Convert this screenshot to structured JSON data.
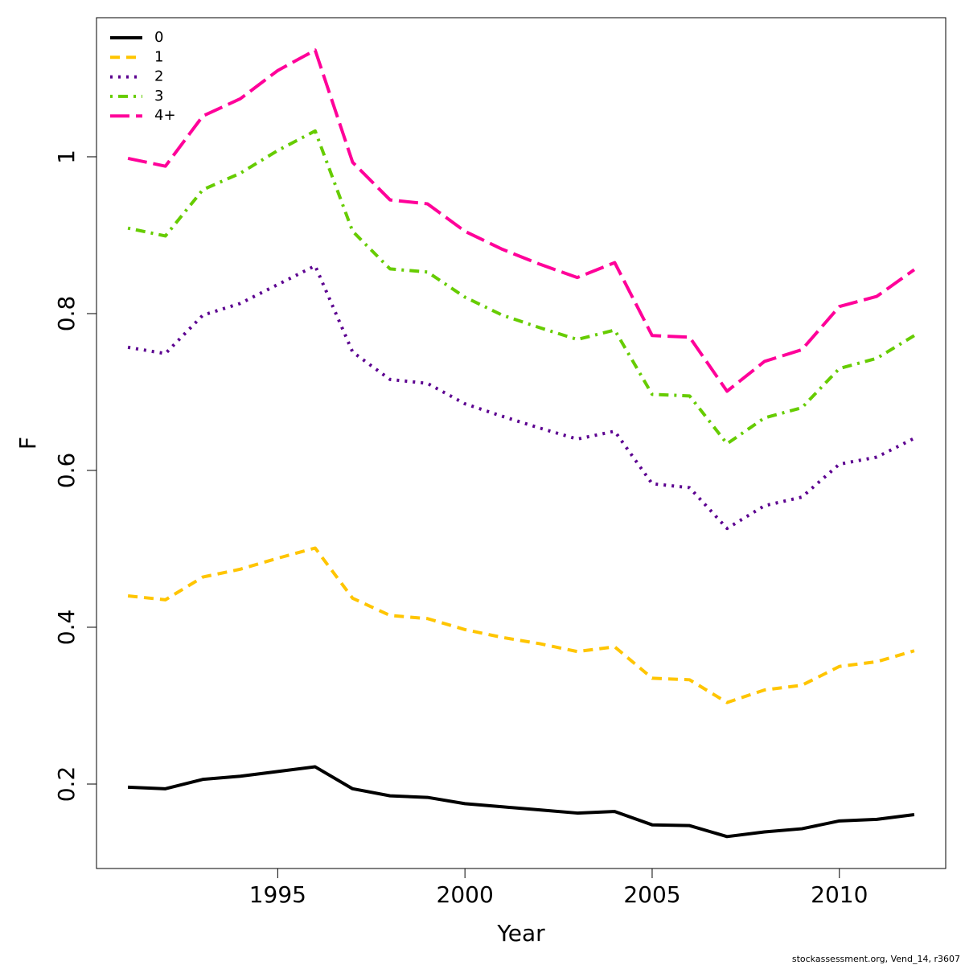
{
  "chart_data": {
    "type": "line",
    "xlabel": "Year",
    "ylabel": "F",
    "x": [
      1991,
      1992,
      1993,
      1994,
      1995,
      1996,
      1997,
      1998,
      1999,
      2000,
      2001,
      2002,
      2003,
      2004,
      2005,
      2006,
      2007,
      2008,
      2009,
      2010,
      2011,
      2012
    ],
    "series": [
      {
        "name": "0",
        "color": "#000000",
        "linestyle": "solid",
        "values": [
          0.196,
          0.194,
          0.206,
          0.21,
          0.216,
          0.222,
          0.194,
          0.185,
          0.183,
          0.175,
          0.171,
          0.167,
          0.163,
          0.165,
          0.148,
          0.147,
          0.133,
          0.139,
          0.143,
          0.153,
          0.155,
          0.161
        ]
      },
      {
        "name": "1",
        "color": "#ffc500",
        "linestyle": "dashed",
        "values": [
          0.44,
          0.435,
          0.464,
          0.474,
          0.488,
          0.501,
          0.437,
          0.415,
          0.411,
          0.397,
          0.387,
          0.379,
          0.369,
          0.375,
          0.335,
          0.333,
          0.304,
          0.32,
          0.326,
          0.35,
          0.356,
          0.37
        ]
      },
      {
        "name": "2",
        "color": "#5c0090",
        "linestyle": "dotted",
        "values": [
          0.757,
          0.749,
          0.798,
          0.813,
          0.837,
          0.861,
          0.751,
          0.716,
          0.711,
          0.685,
          0.669,
          0.654,
          0.64,
          0.65,
          0.583,
          0.578,
          0.526,
          0.555,
          0.566,
          0.608,
          0.617,
          0.641
        ]
      },
      {
        "name": "3",
        "color": "#66cc00",
        "linestyle": "dotdash",
        "values": [
          0.909,
          0.899,
          0.958,
          0.979,
          1.008,
          1.033,
          0.905,
          0.857,
          0.853,
          0.821,
          0.798,
          0.782,
          0.767,
          0.779,
          0.697,
          0.695,
          0.634,
          0.667,
          0.68,
          0.73,
          0.743,
          0.772
        ]
      },
      {
        "name": "4+",
        "color": "#ff0099",
        "linestyle": "longdash",
        "values": [
          0.998,
          0.988,
          1.052,
          1.074,
          1.11,
          1.136,
          0.993,
          0.945,
          0.94,
          0.905,
          0.882,
          0.863,
          0.846,
          0.865,
          0.772,
          0.77,
          0.701,
          0.739,
          0.754,
          0.809,
          0.822,
          0.856
        ]
      }
    ],
    "xlim": [
      1990.16,
      2012.84
    ],
    "xticks": [
      1995,
      2000,
      2005,
      2010
    ],
    "ylim": [
      0.0923,
      1.1774
    ],
    "yticks": [
      0.2,
      0.4,
      0.6,
      0.8,
      1.0
    ],
    "legend": "top-left",
    "grid": false,
    "footnote": "stockassessment.org, Vend_14, r3607"
  }
}
